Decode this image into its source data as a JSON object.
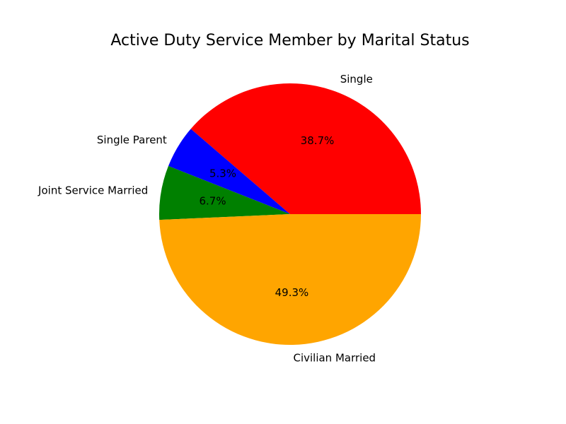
{
  "chart_data": {
    "type": "pie",
    "title": "Active Duty Service Member by Marital Status",
    "slices": [
      {
        "label": "Single",
        "value": 38.7,
        "pct_label": "38.7%",
        "color": "#ff0000"
      },
      {
        "label": "Single Parent",
        "value": 5.3,
        "pct_label": "5.3%",
        "color": "#0000ff"
      },
      {
        "label": "Joint Service Married",
        "value": 6.7,
        "pct_label": "6.7%",
        "color": "#008000"
      },
      {
        "label": "Civilian Married",
        "value": 49.3,
        "pct_label": "49.3%",
        "color": "#ffa500"
      }
    ],
    "start_angle_deg": 0,
    "direction": "counterclockwise"
  }
}
